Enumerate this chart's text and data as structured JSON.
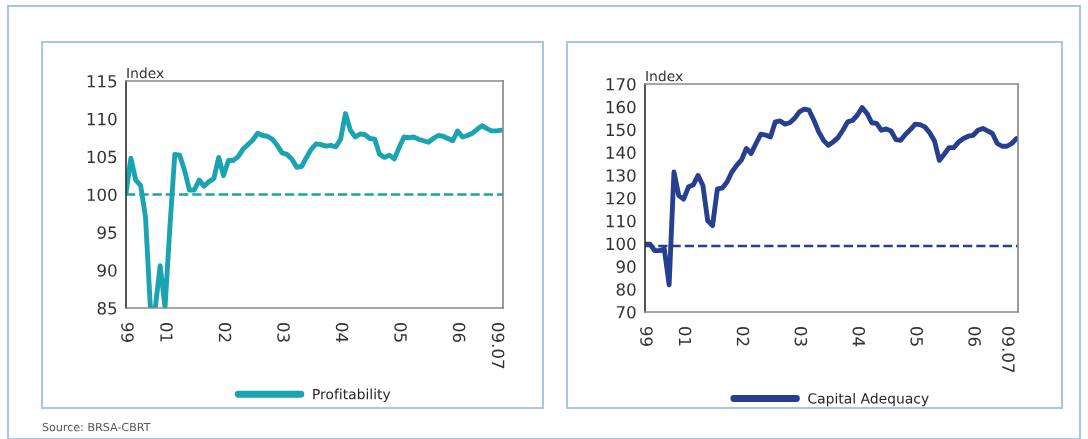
{
  "chart_data": [
    {
      "type": "line",
      "ylabel": "Index",
      "ylim": [
        85,
        115
      ],
      "yticks": [
        85,
        90,
        95,
        100,
        105,
        110,
        115
      ],
      "categories": [
        "99",
        null,
        null,
        null,
        null,
        null,
        null,
        null,
        "01",
        null,
        null,
        null,
        null,
        null,
        null,
        null,
        null,
        null,
        null,
        null,
        "02",
        null,
        null,
        null,
        null,
        null,
        null,
        null,
        null,
        null,
        null,
        null,
        "03",
        null,
        null,
        null,
        null,
        null,
        null,
        null,
        null,
        null,
        null,
        null,
        "04",
        null,
        null,
        null,
        null,
        null,
        null,
        null,
        null,
        null,
        null,
        null,
        "05",
        null,
        null,
        null,
        null,
        null,
        null,
        null,
        null,
        null,
        null,
        null,
        "06",
        null,
        null,
        null,
        null,
        null,
        null,
        null,
        "09.07",
        null
      ],
      "grid": false,
      "legend": "bottom",
      "line_style": "solid",
      "marker": "none",
      "ref_lines": [
        {
          "axis": "y",
          "value": 100,
          "color": "#1aa3b0",
          "line_style": "dashed"
        }
      ],
      "series": [
        {
          "name": "Profitability",
          "color": "#1aa3b0",
          "values": [
            100.2,
            104.8,
            101.9,
            101.2,
            97,
            85,
            85,
            90.6,
            85.1,
            95.7,
            105.3,
            105.2,
            103.2,
            100.6,
            100.6,
            101.9,
            101.1,
            101.7,
            102.1,
            104.9,
            102.5,
            104.5,
            104.5,
            105,
            106,
            106.6,
            107.2,
            108.1,
            107.8,
            107.7,
            107.3,
            106.5,
            105.5,
            105.3,
            104.7,
            103.6,
            103.7,
            104.9,
            106,
            106.7,
            106.6,
            106.4,
            106.5,
            106.3,
            107.3,
            110.7,
            108.5,
            107.6,
            108,
            107.9,
            107.4,
            107.3,
            105.3,
            104.9,
            105.2,
            104.7,
            106.2,
            107.6,
            107.5,
            107.6,
            107.3,
            107.1,
            106.9,
            107.4,
            107.8,
            107.7,
            107.4,
            107.1,
            108.4,
            107.6,
            107.8,
            108.1,
            108.6,
            109.1,
            108.7,
            108.4,
            108.4,
            108.5
          ]
        }
      ]
    },
    {
      "type": "line",
      "ylabel": "Index",
      "ylim": [
        70,
        170
      ],
      "yticks": [
        70,
        80,
        90,
        100,
        110,
        120,
        130,
        140,
        150,
        160,
        170
      ],
      "categories": [
        "99",
        null,
        null,
        null,
        null,
        null,
        null,
        null,
        "01",
        null,
        null,
        null,
        null,
        null,
        null,
        null,
        null,
        null,
        null,
        null,
        "02",
        null,
        null,
        null,
        null,
        null,
        null,
        null,
        null,
        null,
        null,
        null,
        "03",
        null,
        null,
        null,
        null,
        null,
        null,
        null,
        null,
        null,
        null,
        null,
        "04",
        null,
        null,
        null,
        null,
        null,
        null,
        null,
        null,
        null,
        null,
        null,
        "05",
        null,
        null,
        null,
        null,
        null,
        null,
        null,
        null,
        null,
        null,
        null,
        "06",
        null,
        null,
        null,
        null,
        null,
        null,
        "09.07",
        null,
        null
      ],
      "grid": false,
      "legend": "bottom",
      "line_style": "solid",
      "marker": "none",
      "ref_lines": [
        {
          "axis": "y",
          "value": 99,
          "color": "#263f8f",
          "line_style": "dashed"
        }
      ],
      "annotations": [
        "Source: BRSA-CBRT"
      ],
      "series": [
        {
          "name": "Capital Adequacy",
          "color": "#263f8f",
          "values": [
            99.8,
            99.8,
            96.9,
            96.9,
            97.6,
            81.9,
            131.4,
            121.1,
            119.5,
            124.8,
            125.8,
            129.9,
            125.5,
            110,
            107.9,
            124,
            124.3,
            127,
            131.4,
            134.3,
            136.7,
            141.7,
            139.5,
            143.9,
            148,
            147.6,
            146.8,
            153.4,
            153.8,
            152.4,
            153,
            154.9,
            157.8,
            159,
            158.5,
            154.1,
            149,
            145.3,
            143.1,
            144.6,
            146.5,
            149.7,
            153.4,
            154,
            156.3,
            159.7,
            157.1,
            153,
            152.7,
            149.7,
            150.3,
            149.4,
            145.6,
            145.3,
            148,
            150,
            152.4,
            152.2,
            151.2,
            148.6,
            145,
            136.5,
            139.2,
            142.1,
            142.1,
            144.6,
            146.1,
            147.1,
            147.5,
            149.7,
            150.5,
            149.4,
            148.3,
            143.9,
            142.7,
            142.7,
            143.9,
            146.1
          ]
        }
      ]
    }
  ]
}
